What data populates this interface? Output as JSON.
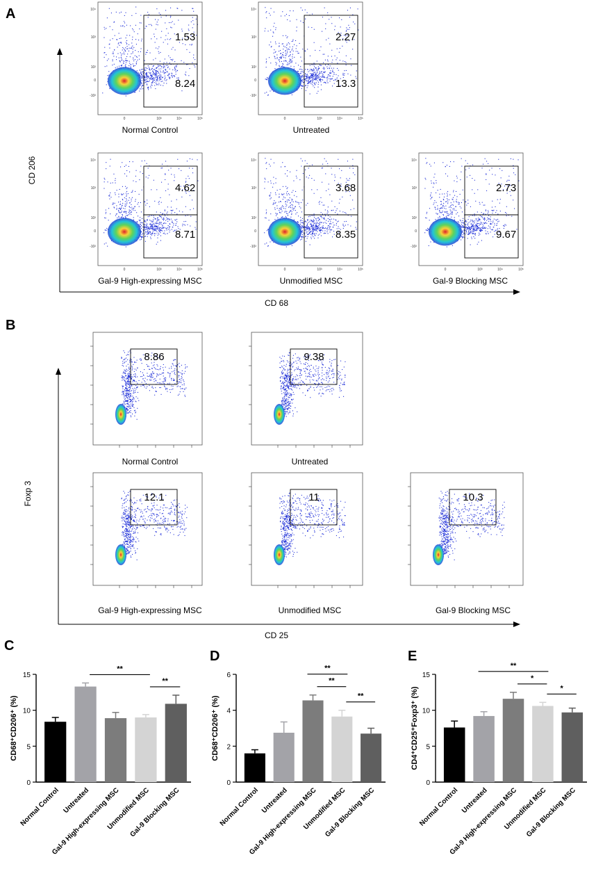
{
  "panels": {
    "A": {
      "letter": "A",
      "x_axis": "CD 68",
      "y_axis": "CD 206",
      "plots": [
        {
          "label": "Normal Control",
          "upper": "1.53",
          "lower": "8.24"
        },
        {
          "label": "Untreated",
          "upper": "2.27",
          "lower": "13.3"
        },
        {
          "label": "Gal-9 High-expressing MSC",
          "upper": "4.62",
          "lower": "8.71"
        },
        {
          "label": "Unmodified MSC",
          "upper": "3.68",
          "lower": "8.35"
        },
        {
          "label": "Gal-9 Blocking MSC",
          "upper": "2.73",
          "lower": "9.67"
        }
      ],
      "y_ticks": [
        "10⁴",
        "10³",
        "10²",
        "0",
        "-10²"
      ],
      "x_ticks": [
        "0",
        "10³",
        "10⁴",
        "10⁵"
      ]
    },
    "B": {
      "letter": "B",
      "x_axis": "CD 25",
      "y_axis": "Foxp 3",
      "plots": [
        {
          "label": "Normal Control",
          "value": "8.86"
        },
        {
          "label": "Untreated",
          "value": "9.38"
        },
        {
          "label": "Gal-9 High-expressing MSC",
          "value": "12.1"
        },
        {
          "label": "Unmodified MSC",
          "value": "11"
        },
        {
          "label": "Gal-9 Blocking MSC",
          "value": "10.3"
        }
      ]
    },
    "C": {
      "letter": "C"
    },
    "D": {
      "letter": "D"
    },
    "E": {
      "letter": "E"
    }
  },
  "chart_data": [
    {
      "panel": "C",
      "type": "bar",
      "categories": [
        "Normal Control",
        "Untreated",
        "Gal-9 High-expressing MSC",
        "Unmodified MSC",
        "Gal-9 Blocking MSC"
      ],
      "values": [
        8.4,
        13.3,
        8.9,
        9.0,
        10.9
      ],
      "errors": [
        0.6,
        0.5,
        0.8,
        0.4,
        1.2
      ],
      "ylabel": "CD68⁺CD206⁺ (%)",
      "ylim": [
        0,
        15
      ],
      "yticks": [
        "0",
        "5",
        "10",
        "15"
      ],
      "significance": [
        {
          "from": 1,
          "to": 3,
          "label": "**"
        },
        {
          "from": 3,
          "to": 4,
          "label": "**"
        }
      ]
    },
    {
      "panel": "D",
      "type": "bar",
      "categories": [
        "Normal Control",
        "Untreated",
        "Gal-9 High-expressing MSC",
        "Unmodified MSC",
        "Gal-9 Blocking MSC"
      ],
      "values": [
        1.6,
        2.75,
        4.55,
        3.65,
        2.7
      ],
      "errors": [
        0.2,
        0.6,
        0.3,
        0.35,
        0.3
      ],
      "ylabel": "CD68⁺CD206⁺ (%)",
      "ylim": [
        0,
        6
      ],
      "yticks": [
        "0",
        "2",
        "4",
        "6"
      ],
      "significance": [
        {
          "from": 2,
          "to": 3,
          "label": "**"
        },
        {
          "from": 3,
          "to": 4,
          "label": "**"
        },
        {
          "from": 2,
          "to": 3,
          "label": "**",
          "level": 2
        }
      ]
    },
    {
      "panel": "E",
      "type": "bar",
      "categories": [
        "Normal Control",
        "Untreated",
        "Gal-9 High-expressing MSC",
        "Unmodified MSC",
        "Gal-9 Blocking MSC"
      ],
      "values": [
        7.6,
        9.2,
        11.6,
        10.6,
        9.7
      ],
      "errors": [
        0.9,
        0.6,
        0.9,
        0.5,
        0.6
      ],
      "ylabel": "CD4⁺CD25⁺Foxp3⁺ (%)",
      "ylim": [
        0,
        15
      ],
      "yticks": [
        "0",
        "5",
        "10",
        "15"
      ],
      "significance": [
        {
          "from": 2,
          "to": 3,
          "label": "*"
        },
        {
          "from": 3,
          "to": 4,
          "label": "*"
        },
        {
          "from": 1,
          "to": 3,
          "label": "**",
          "level": 2
        }
      ]
    }
  ],
  "colors": {
    "bars": [
      "#000000",
      "#a3a3a8",
      "#7c7c7c",
      "#d4d4d4",
      "#5f5f5f"
    ],
    "dots": "#1f2fd8"
  }
}
